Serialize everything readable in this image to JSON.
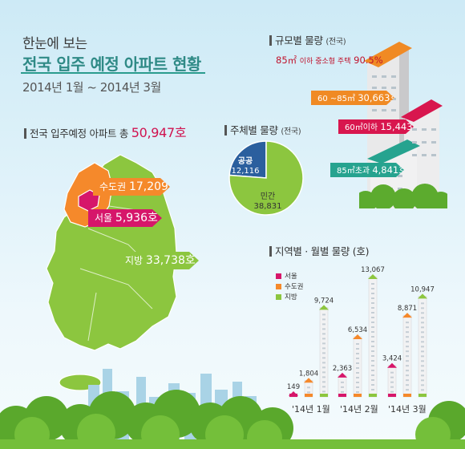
{
  "header": {
    "line1": "한눈에 보는",
    "line2": "전국 입주 예정 아파트 현황",
    "period": "2014년  1월 ~ 2014년 3월"
  },
  "national_total": {
    "label": "전국 입주예정 아파트",
    "prefix": "총",
    "value": "50,947호"
  },
  "regions": [
    {
      "name": "수도권",
      "value": "17,209호",
      "color": "#f5892b"
    },
    {
      "name": "서울",
      "value": "5,936호",
      "color": "#d6166a"
    },
    {
      "name": "지방",
      "value": "33,738호",
      "color": "#8cc63f"
    }
  ],
  "by_size": {
    "title": "규모별 물량",
    "title_note": "(전국)",
    "highlight": {
      "area": "85㎡",
      "text": "이하 중소형 주택",
      "pct": "90.5%"
    },
    "items": [
      {
        "range": "60 ~85㎡",
        "value": "30,663호",
        "color": "#f08a24"
      },
      {
        "range": "60㎡이하",
        "value": "15,443호",
        "color": "#d8164e"
      },
      {
        "range": "85㎡초과",
        "value": "4,841호",
        "color": "#26a38f"
      }
    ]
  },
  "by_entity": {
    "title": "주체별 물량",
    "title_note": "(전국)",
    "public_label": "공공",
    "public_value": "12,116",
    "private_label": "민간",
    "private_value": "38,831"
  },
  "monthly": {
    "title": "지역별 · 월별 물량",
    "unit": "(호)",
    "legend": [
      {
        "name": "서울",
        "color": "#d6166a"
      },
      {
        "name": "수도권",
        "color": "#f5892b"
      },
      {
        "name": "지방",
        "color": "#8cc63f"
      }
    ]
  },
  "chart_data": [
    {
      "type": "bar",
      "title": "지역별 · 월별 물량",
      "unit": "(호)",
      "categories": [
        "'14년 1월",
        "'14년 2월",
        "'14년 3월"
      ],
      "series": [
        {
          "name": "서울",
          "values": [
            149,
            2363,
            3424
          ]
        },
        {
          "name": "수도권",
          "values": [
            1804,
            6534,
            8871
          ]
        },
        {
          "name": "지방",
          "values": [
            9724,
            13067,
            10947
          ]
        }
      ],
      "value_labels": [
        [
          "149",
          "2,363",
          "3,424"
        ],
        [
          "1,804",
          "6,534",
          "8,871"
        ],
        [
          "9,724",
          "13,067",
          "10,947"
        ]
      ]
    },
    {
      "type": "pie",
      "title": "주체별 물량",
      "categories": [
        "공공",
        "민간"
      ],
      "values": [
        12116,
        38831
      ]
    }
  ]
}
